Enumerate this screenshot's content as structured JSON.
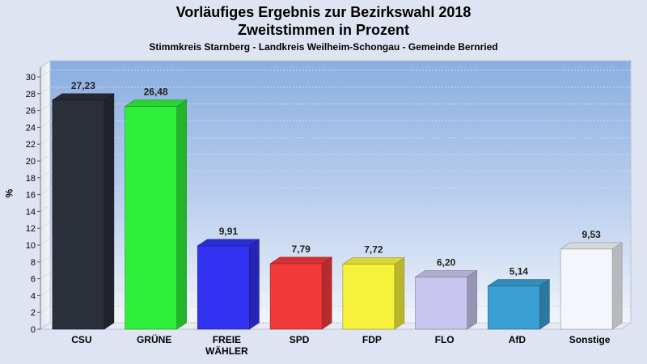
{
  "title": "Vorläufiges Ergebnis zur Bezirkswahl 2018",
  "subtitle": "Zweitstimmen in Prozent",
  "caption": "Stimmkreis Starnberg - Landkreis Weilheim-Schongau - Gemeinde Bernried",
  "chart_data": {
    "type": "bar",
    "title": "Vorläufiges Ergebnis zur Bezirkswahl 2018",
    "subtitle": "Zweitstimmen in Prozent",
    "ylabel": "%",
    "xlabel": "",
    "ylim": [
      0,
      30
    ],
    "yticks": [
      0,
      2,
      4,
      6,
      8,
      10,
      12,
      14,
      16,
      18,
      20,
      22,
      24,
      26,
      28,
      30
    ],
    "grid": true,
    "categories": [
      "CSU",
      "GRÜNE",
      "FREIE WÄHLER",
      "SPD",
      "FDP",
      "FLO",
      "AfD",
      "Sonstige"
    ],
    "category_lines": [
      [
        "CSU"
      ],
      [
        "GRÜNE"
      ],
      [
        "FREIE",
        "WÄHLER"
      ],
      [
        "SPD"
      ],
      [
        "FDP"
      ],
      [
        "FLO"
      ],
      [
        "AfD"
      ],
      [
        "Sonstige"
      ]
    ],
    "values": [
      27.23,
      26.48,
      9.91,
      7.79,
      7.72,
      6.2,
      5.14,
      9.53
    ],
    "value_labels": [
      "27,23",
      "26,48",
      "9,91",
      "7,79",
      "7,72",
      "6,20",
      "5,14",
      "9,53"
    ],
    "colors": [
      "#2b2f3a",
      "#2ef03a",
      "#3232f0",
      "#f23a3a",
      "#f6f23c",
      "#c8c6ee",
      "#3aa0d4",
      "#f4f6fb"
    ]
  }
}
